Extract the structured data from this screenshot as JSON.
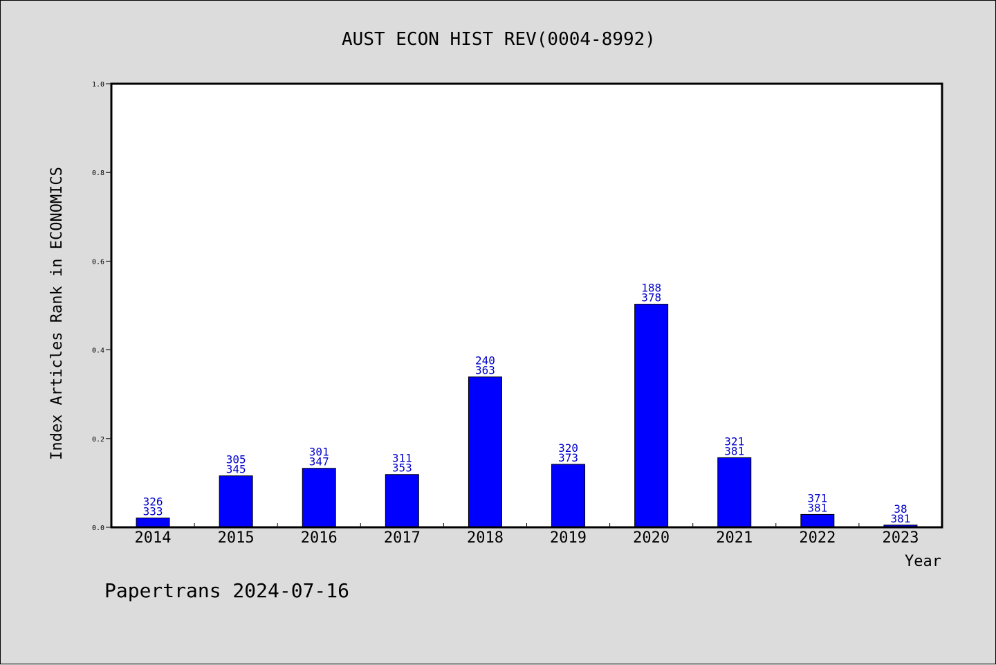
{
  "chart_data": {
    "type": "bar",
    "title": "AUST ECON HIST REV(0004-8992)",
    "xlabel": "Year",
    "ylabel": "Index Articles Rank in ECONOMICS",
    "ylim": [
      0,
      1.0
    ],
    "yticks": [
      "0.0",
      "0.2",
      "0.4",
      "0.6",
      "0.8",
      "1.0"
    ],
    "categories": [
      "2014",
      "2015",
      "2016",
      "2017",
      "2018",
      "2019",
      "2020",
      "2021",
      "2022",
      "2023"
    ],
    "values": [
      0.021,
      0.116,
      0.133,
      0.119,
      0.339,
      0.142,
      0.503,
      0.157,
      0.029,
      0.005
    ],
    "labels_top": [
      "326",
      "305",
      "301",
      "311",
      "240",
      "320",
      "188",
      "321",
      "371",
      "38"
    ],
    "labels_bottom": [
      "333",
      "345",
      "347",
      "353",
      "363",
      "373",
      "378",
      "381",
      "381",
      "381"
    ],
    "bar_color": "#0000ff",
    "label_color": "#0000cc",
    "grid": false,
    "legend": "none"
  },
  "footer": "Papertrans 2024-07-16"
}
